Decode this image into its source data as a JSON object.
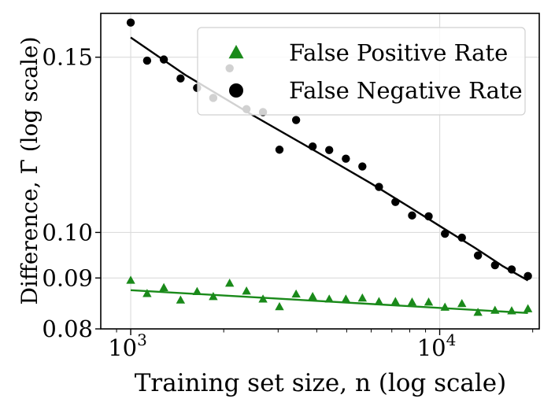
{
  "chart_data": {
    "type": "scatter",
    "title": "",
    "xlabel": "Training set size, n (log scale)",
    "ylabel": "Difference, Γ̄ (log scale)",
    "xscale": "log",
    "yscale": "log",
    "xlim": [
      800,
      21000
    ],
    "ylim": [
      0.08,
      0.166
    ],
    "x_ticks": [
      {
        "value": 1000,
        "base": "10",
        "exp": "3"
      },
      {
        "value": 10000,
        "base": "10",
        "exp": "4"
      }
    ],
    "y_ticks": [
      {
        "value": 0.08,
        "label": "0.08"
      },
      {
        "value": 0.09,
        "label": "0.09"
      },
      {
        "value": 0.1,
        "label": "0.10"
      },
      {
        "value": 0.15,
        "label": "0.15"
      }
    ],
    "grid": true,
    "legend_position": "top-right",
    "legend": [
      {
        "marker": "triangle",
        "label": "False Positive Rate",
        "color": "#1a8a1a"
      },
      {
        "marker": "circle",
        "label": "False Negative Rate",
        "color": "#000000"
      }
    ],
    "series": [
      {
        "name": "False Positive Rate",
        "color": "#1a8a1a",
        "marker": "triangle",
        "x": [
          1000,
          1130,
          1280,
          1450,
          1640,
          1850,
          2090,
          2370,
          2680,
          3030,
          3430,
          3880,
          4390,
          4970,
          5620,
          6360,
          7190,
          8140,
          9210,
          10400,
          11800,
          13300,
          15100,
          17100,
          19300
        ],
        "y": [
          0.0895,
          0.0868,
          0.088,
          0.0855,
          0.0872,
          0.0862,
          0.0889,
          0.0873,
          0.0857,
          0.0842,
          0.0867,
          0.0862,
          0.0857,
          0.0857,
          0.0859,
          0.0852,
          0.0852,
          0.0851,
          0.0851,
          0.0841,
          0.0848,
          0.0831,
          0.0835,
          0.0834,
          0.0838
        ],
        "fit": [
          [
            1000,
            0.0875
          ],
          [
            19300,
            0.083
          ]
        ]
      },
      {
        "name": "False Negative Rate",
        "color": "#000000",
        "marker": "circle",
        "x": [
          1000,
          1130,
          1280,
          1450,
          1640,
          1850,
          2090,
          2370,
          2680,
          3030,
          3430,
          3880,
          4390,
          4970,
          5620,
          6360,
          7190,
          8140,
          9210,
          10400,
          11800,
          13300,
          15100,
          17100,
          19300
        ],
        "y": [
          0.1625,
          0.1488,
          0.1492,
          0.1428,
          0.1397,
          0.1365,
          0.1462,
          0.133,
          0.1321,
          0.1211,
          0.1297,
          0.122,
          0.121,
          0.1186,
          0.1165,
          0.1111,
          0.1073,
          0.104,
          0.1038,
          0.0997,
          0.0988,
          0.0948,
          0.0927,
          0.0918,
          0.0904
        ],
        "fit": [
          [
            1000,
            0.157
          ],
          [
            1500,
            0.144
          ],
          [
            2500,
            0.131
          ],
          [
            4000,
            0.1205
          ],
          [
            6000,
            0.112
          ],
          [
            8000,
            0.106
          ],
          [
            10000,
            0.1015
          ],
          [
            13000,
            0.0965
          ],
          [
            16000,
            0.0925
          ],
          [
            19300,
            0.0895
          ]
        ]
      }
    ]
  }
}
